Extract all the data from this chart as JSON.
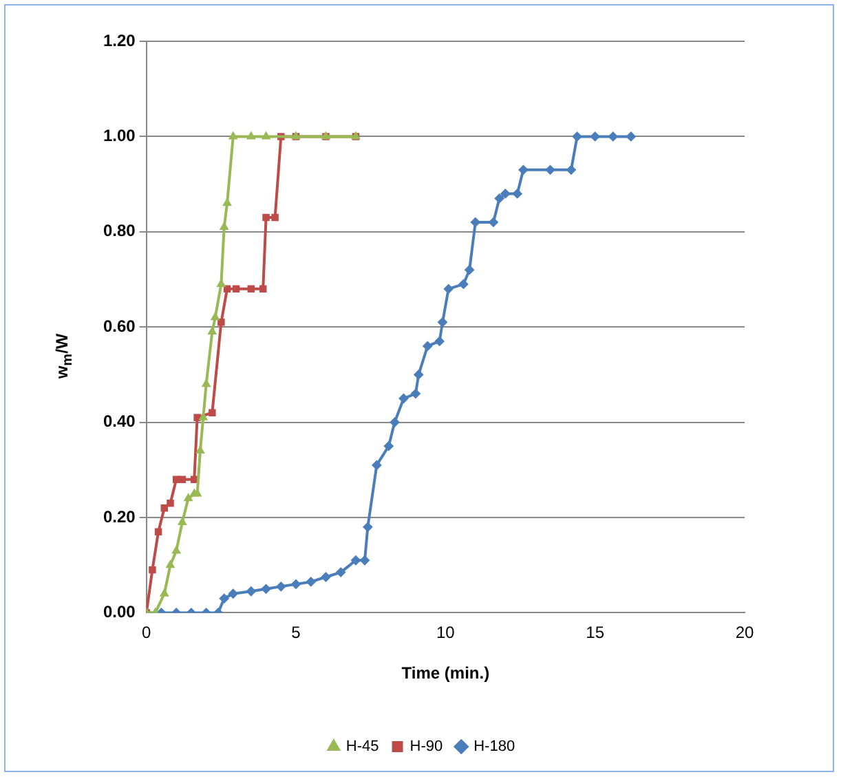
{
  "chart_data": {
    "type": "line",
    "xlabel": "Time (min.)",
    "ylabel": "w$_{m}$/W",
    "xlim": [
      0,
      20
    ],
    "xticks": [
      0,
      5,
      10,
      15,
      20
    ],
    "ylim": [
      0,
      1.2
    ],
    "yticks": [
      {
        "value": 0,
        "label": "0.00"
      },
      {
        "value": 0.2,
        "label": "0.20"
      },
      {
        "value": 0.4,
        "label": "0.40"
      },
      {
        "value": 0.6,
        "label": "0.60"
      },
      {
        "value": 0.8,
        "label": "0.80"
      },
      {
        "value": 1,
        "label": "1.00"
      },
      {
        "value": 1.2,
        "label": "1.20"
      }
    ],
    "grid": "y",
    "legend": "bottom",
    "series": [
      {
        "name": "H-180",
        "color": "#4a7ebb",
        "marker": "diamond",
        "x": [
          0,
          0.5,
          1,
          1.5,
          2,
          2.4,
          2.6,
          2.9,
          3.5,
          4,
          4.5,
          5,
          5.5,
          6,
          6.5,
          7,
          7.3,
          7.4,
          7.7,
          8.1,
          8.3,
          8.6,
          9,
          9.1,
          9.4,
          9.8,
          9.9,
          10.1,
          10.6,
          10.8,
          11,
          11.6,
          11.8,
          12,
          12.4,
          12.6,
          13.5,
          14.2,
          14.4,
          15,
          15.6,
          16.2
        ],
        "values": [
          0,
          0,
          0,
          0,
          0,
          0,
          0.03,
          0.04,
          0.045,
          0.05,
          0.055,
          0.06,
          0.065,
          0.075,
          0.085,
          0.11,
          0.11,
          0.18,
          0.31,
          0.35,
          0.4,
          0.45,
          0.46,
          0.5,
          0.56,
          0.57,
          0.61,
          0.68,
          0.69,
          0.72,
          0.82,
          0.82,
          0.87,
          0.88,
          0.88,
          0.93,
          0.93,
          0.93,
          1,
          1,
          1,
          1
        ]
      },
      {
        "name": "H-90",
        "color": "#be4b48",
        "marker": "square",
        "x": [
          0,
          0.2,
          0.4,
          0.6,
          0.8,
          1,
          1.2,
          1.6,
          1.7,
          2.2,
          2.5,
          2.7,
          3,
          3.5,
          3.9,
          4,
          4.3,
          4.5,
          5,
          6,
          7
        ],
        "values": [
          0,
          0.09,
          0.17,
          0.22,
          0.23,
          0.28,
          0.28,
          0.28,
          0.41,
          0.42,
          0.61,
          0.68,
          0.68,
          0.68,
          0.68,
          0.83,
          0.83,
          1,
          1,
          1,
          1
        ]
      },
      {
        "name": "H-45",
        "color": "#98b954",
        "marker": "triangle",
        "x": [
          0,
          0.3,
          0.6,
          0.8,
          1,
          1.2,
          1.4,
          1.6,
          1.7,
          1.8,
          1.9,
          2,
          2.2,
          2.3,
          2.5,
          2.6,
          2.7,
          2.9,
          3.5,
          4,
          5,
          6,
          7
        ],
        "values": [
          0,
          0,
          0.04,
          0.1,
          0.13,
          0.19,
          0.24,
          0.25,
          0.25,
          0.34,
          0.41,
          0.48,
          0.59,
          0.62,
          0.69,
          0.81,
          0.86,
          1,
          1,
          1,
          1,
          1,
          1
        ]
      }
    ]
  }
}
